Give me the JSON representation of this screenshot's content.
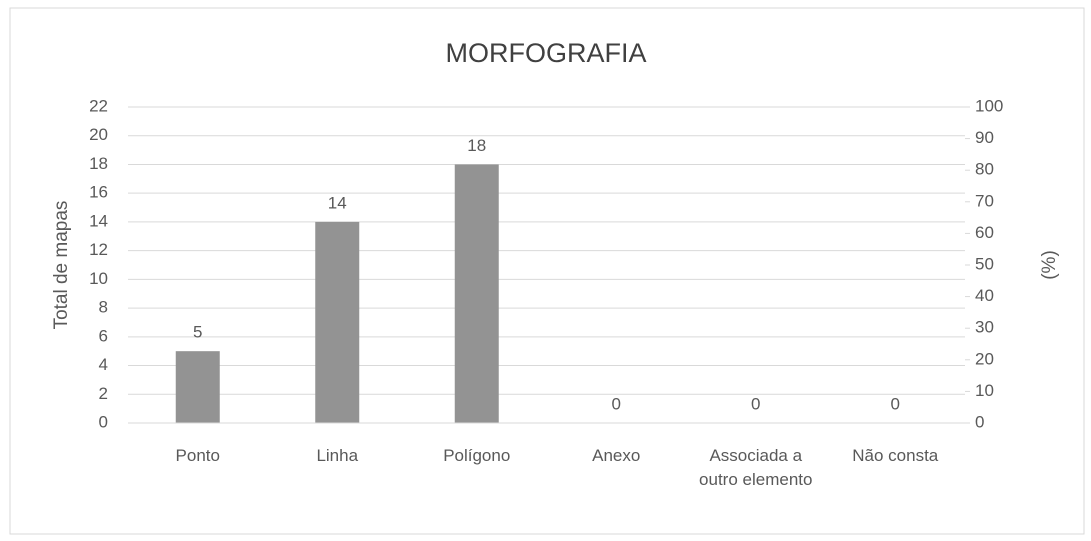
{
  "chart_data": {
    "type": "bar",
    "title": "MORFOGRAFIA",
    "categories": [
      "Ponto",
      "Linha",
      "Polígono",
      "Anexo",
      "Associada a outro elemento",
      "Não consta"
    ],
    "values": [
      5,
      14,
      18,
      0,
      0,
      0
    ],
    "color": "#939393",
    "ylabel": "Total de mapas",
    "y2label": "(%)",
    "ylim": [
      0,
      22
    ],
    "yticks": [
      0,
      2,
      4,
      6,
      8,
      10,
      12,
      14,
      16,
      18,
      20,
      22
    ],
    "y2lim": [
      0,
      100
    ],
    "y2ticks": [
      0,
      10,
      20,
      30,
      40,
      50,
      60,
      70,
      80,
      90,
      100
    ],
    "grid": true
  }
}
